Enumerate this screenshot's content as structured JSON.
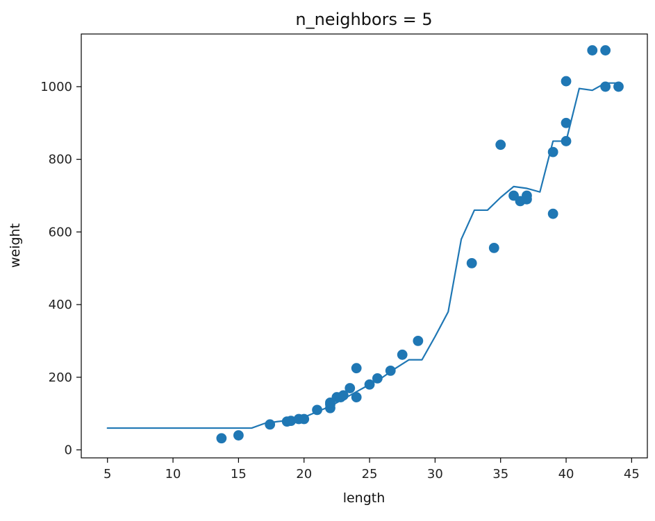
{
  "chart_data": {
    "type": "scatter",
    "title": "n_neighbors = 5",
    "xlabel": "length",
    "ylabel": "weight",
    "xlim": [
      3,
      46.2
    ],
    "ylim": [
      -22,
      1145
    ],
    "xticks": [
      5,
      10,
      15,
      20,
      25,
      30,
      35,
      40,
      45
    ],
    "yticks": [
      0,
      200,
      400,
      600,
      800,
      1000
    ],
    "grid": false,
    "legend": "none",
    "color": "#1f77b4",
    "series": [
      {
        "kind": "scatter",
        "x": [
          13.7,
          15.0,
          17.4,
          18.7,
          19.0,
          19.6,
          20.0,
          21.0,
          22.0,
          22.0,
          22.0,
          22.5,
          22.8,
          23.0,
          23.5,
          24.0,
          24.0,
          25.0,
          25.6,
          26.6,
          27.5,
          28.7,
          32.8,
          34.5,
          35.0,
          36.0,
          36.5,
          37.0,
          37.0,
          39.0,
          39.0,
          40.0,
          40.0,
          40.0,
          42.0,
          43.0,
          43.0,
          44.0
        ],
        "y": [
          32,
          40,
          70,
          78,
          80,
          85,
          85,
          110,
          115,
          125,
          130,
          145,
          145,
          150,
          170,
          145,
          225,
          180,
          197,
          218,
          262,
          300,
          514,
          556,
          840,
          700,
          685,
          700,
          690,
          650,
          820,
          850,
          900,
          1015,
          1100,
          1000,
          1100,
          1000
        ]
      },
      {
        "kind": "line",
        "x": [
          5,
          16,
          17,
          18,
          19,
          20,
          21,
          22,
          23,
          24,
          25,
          26,
          27,
          28,
          29,
          30,
          31,
          32,
          33,
          34,
          35,
          36,
          37,
          38,
          39,
          40,
          41,
          42,
          43,
          44
        ],
        "y": [
          60,
          60,
          73,
          78,
          82,
          90,
          105,
          120,
          140,
          160,
          180,
          200,
          225,
          248,
          248,
          312,
          380,
          580,
          660,
          660,
          695,
          725,
          720,
          710,
          850,
          850,
          995,
          990,
          1010,
          1010
        ]
      }
    ]
  }
}
